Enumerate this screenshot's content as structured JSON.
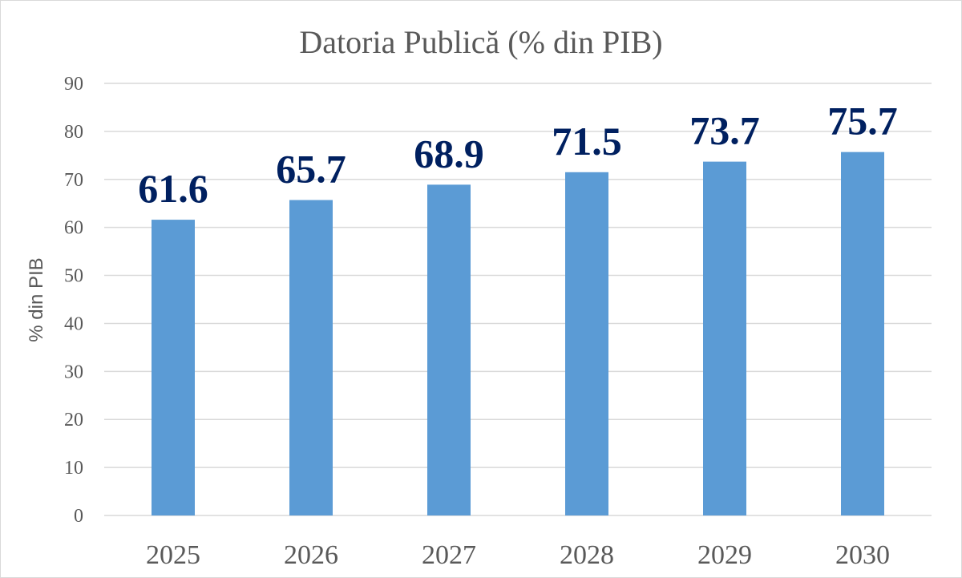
{
  "chart_data": {
    "type": "bar",
    "title": "Datoria Publică (% din PIB)",
    "xlabel": "",
    "ylabel": "% din PIB",
    "categories": [
      "2025",
      "2026",
      "2027",
      "2028",
      "2029",
      "2030"
    ],
    "values": [
      61.6,
      65.7,
      68.9,
      71.5,
      73.7,
      75.7
    ],
    "data_labels": [
      "61.6",
      "65.7",
      "68.9",
      "71.5",
      "73.7",
      "75.7"
    ],
    "ylim": [
      0,
      90
    ],
    "yticks": [
      0,
      10,
      20,
      30,
      40,
      50,
      60,
      70,
      80,
      90
    ],
    "grid": true,
    "legend": "none",
    "colors": {
      "bar": "#5b9bd5",
      "data_label": "#002060",
      "grid": "#d9d9d9",
      "text": "#595959"
    }
  }
}
